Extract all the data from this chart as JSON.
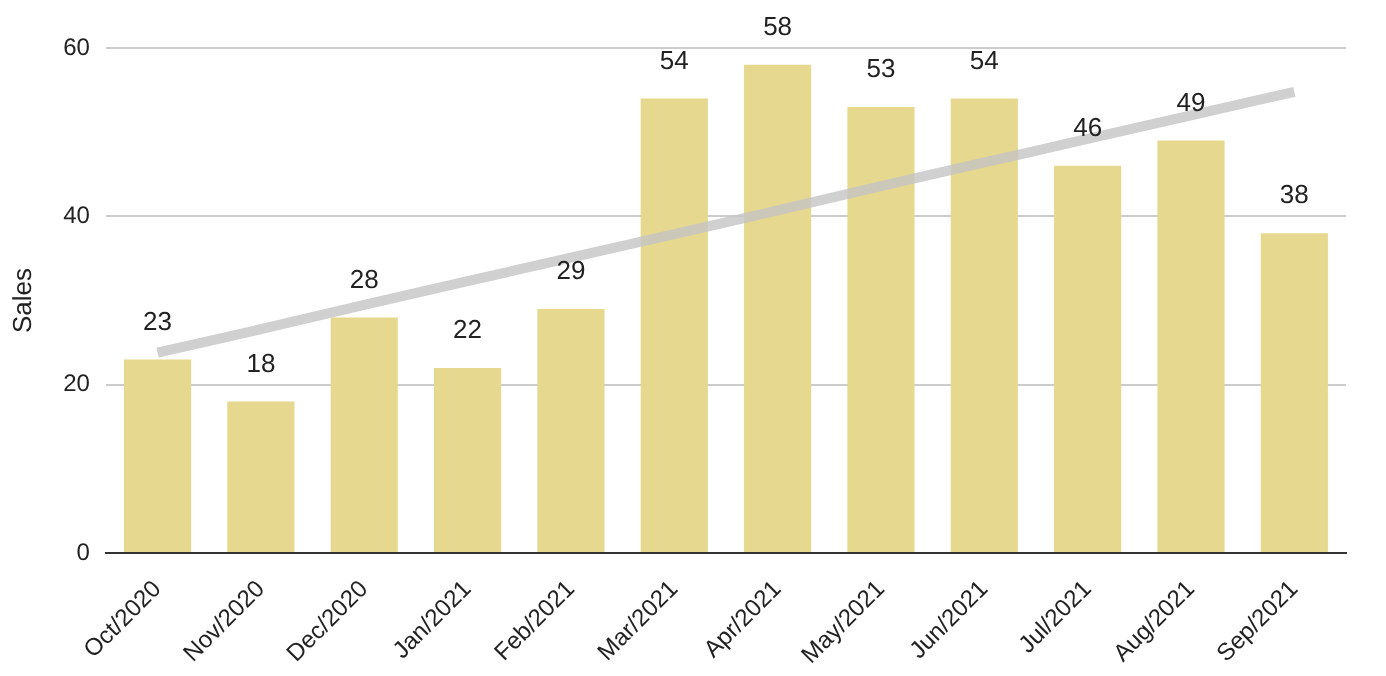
{
  "chart_data": {
    "type": "bar",
    "ylabel": "Sales",
    "categories": [
      "Oct/2020",
      "Nov/2020",
      "Dec/2020",
      "Jan/2021",
      "Feb/2021",
      "Mar/2021",
      "Apr/2021",
      "May/2021",
      "Jun/2021",
      "Jul/2021",
      "Aug/2021",
      "Sep/2021"
    ],
    "series": [
      {
        "color": "#e6d88e",
        "values": [
          23,
          18,
          28,
          22,
          29,
          54,
          58,
          53,
          54,
          46,
          49,
          38
        ],
        "value_labels": [
          "23",
          "18",
          "28",
          "22",
          "29",
          "54",
          "58",
          "53",
          "54",
          "46",
          "49",
          "38"
        ]
      },
      {
        "type": "line",
        "color": "#c4c4c4",
        "values": [
          23.8,
          26.6,
          29.5,
          32.3,
          35.1,
          37.9,
          40.7,
          43.6,
          46.4,
          49.2,
          52.0,
          54.8
        ]
      }
    ],
    "ylim": [
      0,
      60
    ],
    "yticks": [
      0,
      20,
      40,
      60
    ],
    "grid": "y",
    "legend": false,
    "marker": "none"
  }
}
